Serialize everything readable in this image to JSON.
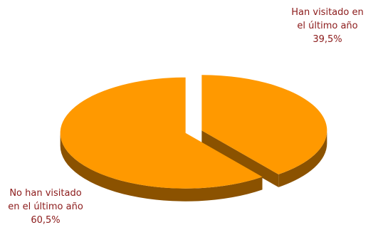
{
  "chart_data": {
    "type": "pie",
    "style": "3d-exploded",
    "title": "",
    "categories": [
      "Han visitado en el último año",
      "No han visitado en el último año"
    ],
    "values": [
      39.5,
      60.5
    ],
    "slices": [
      {
        "label_lines": [
          "Han visitado en",
          "el último año"
        ],
        "value_text": "39,5%",
        "value": 39.5,
        "color": "#ff9900",
        "side_color": "#8b5200"
      },
      {
        "label_lines": [
          "No han visitado",
          "en el último año"
        ],
        "value_text": "60,5%",
        "value": 60.5,
        "color": "#ff9900",
        "side_color": "#8b5200"
      }
    ],
    "label_color": "#8b1a1a",
    "legend": "none"
  }
}
